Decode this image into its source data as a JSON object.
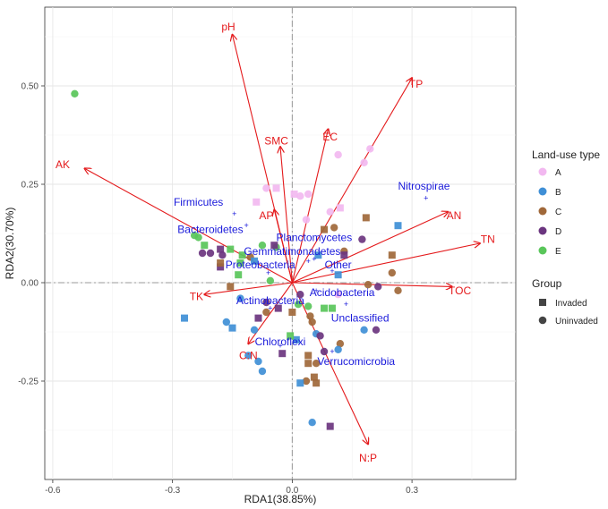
{
  "chart_data": {
    "type": "scatter",
    "xlabel": "RDA1(38.85%)",
    "ylabel": "RDA2(30.70%)",
    "xlim": [
      -0.62,
      0.56
    ],
    "ylim": [
      -0.5,
      0.7
    ],
    "xticks": [
      -0.6,
      -0.3,
      0.0,
      0.3
    ],
    "xtick_labels": [
      "-0.6",
      "-0.3",
      "0.0",
      "0.3"
    ],
    "yticks": [
      -0.25,
      0.0,
      0.25,
      0.5
    ],
    "ytick_labels": [
      "-0.25",
      "0.00",
      "0.25",
      "0.50"
    ],
    "legend_landuse": {
      "title": "Land-use type",
      "entries": [
        {
          "label": "A",
          "color": "#f2b8f0"
        },
        {
          "label": "B",
          "color": "#3f8fd6"
        },
        {
          "label": "C",
          "color": "#a0683a"
        },
        {
          "label": "D",
          "color": "#6b357f"
        },
        {
          "label": "E",
          "color": "#59c65a"
        }
      ]
    },
    "legend_group": {
      "title": "Group",
      "entries": [
        {
          "label": "Invaded",
          "shape": "square"
        },
        {
          "label": "Uninvaded",
          "shape": "circle"
        }
      ]
    },
    "vectors": [
      {
        "name": "pH",
        "x": -0.15,
        "y": 0.63,
        "lx": -0.16,
        "ly": 0.65
      },
      {
        "name": "TP",
        "x": 0.3,
        "y": 0.52,
        "lx": 0.31,
        "ly": 0.505
      },
      {
        "name": "EC",
        "x": 0.09,
        "y": 0.39,
        "lx": 0.095,
        "ly": 0.37
      },
      {
        "name": "SMC",
        "x": -0.03,
        "y": 0.345,
        "lx": -0.04,
        "ly": 0.36
      },
      {
        "name": "AK",
        "x": -0.52,
        "y": 0.29,
        "lx": -0.575,
        "ly": 0.3
      },
      {
        "name": "AN",
        "x": 0.39,
        "y": 0.18,
        "lx": 0.405,
        "ly": 0.17
      },
      {
        "name": "TN",
        "x": 0.47,
        "y": 0.1,
        "lx": 0.49,
        "ly": 0.11
      },
      {
        "name": "TOC",
        "x": 0.4,
        "y": -0.01,
        "lx": 0.42,
        "ly": -0.02
      },
      {
        "name": "AP",
        "x": -0.045,
        "y": 0.185,
        "lx": -0.065,
        "ly": 0.17
      },
      {
        "name": "TK",
        "x": -0.22,
        "y": -0.03,
        "lx": -0.24,
        "ly": -0.035
      },
      {
        "name": "C:N",
        "x": -0.11,
        "y": -0.155,
        "lx": -0.11,
        "ly": -0.185
      },
      {
        "name": "N:P",
        "x": 0.19,
        "y": -0.41,
        "lx": 0.19,
        "ly": -0.445
      }
    ],
    "species": [
      {
        "name": "Firmicutes",
        "x": -0.145,
        "y": 0.175,
        "lx": -0.235,
        "ly": 0.205
      },
      {
        "name": "Nitrospirae",
        "x": 0.335,
        "y": 0.215,
        "lx": 0.33,
        "ly": 0.245
      },
      {
        "name": "Bacteroidetes",
        "x": -0.115,
        "y": 0.145,
        "lx": -0.205,
        "ly": 0.135
      },
      {
        "name": "Planctomycetes",
        "x": 0.055,
        "y": 0.06,
        "lx": 0.055,
        "ly": 0.115
      },
      {
        "name": "Gemmatimonadetes",
        "x": 0.04,
        "y": 0.055,
        "lx": 0.0,
        "ly": 0.08
      },
      {
        "name": "Proteobacteria",
        "x": -0.06,
        "y": 0.025,
        "lx": -0.08,
        "ly": 0.045
      },
      {
        "name": "Other",
        "x": 0.1,
        "y": 0.03,
        "lx": 0.115,
        "ly": 0.045
      },
      {
        "name": "Acidobacteria",
        "x": 0.06,
        "y": -0.02,
        "lx": 0.125,
        "ly": -0.025
      },
      {
        "name": "Actinobacteria",
        "x": -0.055,
        "y": -0.065,
        "lx": -0.055,
        "ly": -0.045
      },
      {
        "name": "Unclassified",
        "x": 0.135,
        "y": -0.055,
        "lx": 0.17,
        "ly": -0.09
      },
      {
        "name": "Chloroflexi",
        "x": -0.03,
        "y": -0.16,
        "lx": -0.03,
        "ly": -0.15
      },
      {
        "name": "Verrucomicrobia",
        "x": 0.1,
        "y": -0.175,
        "lx": 0.16,
        "ly": -0.2
      }
    ],
    "points": [
      {
        "g": "E",
        "s": "circle",
        "x": -0.545,
        "y": 0.48
      },
      {
        "g": "A",
        "s": "circle",
        "x": 0.195,
        "y": 0.34
      },
      {
        "g": "A",
        "s": "circle",
        "x": 0.115,
        "y": 0.325
      },
      {
        "g": "A",
        "s": "circle",
        "x": 0.18,
        "y": 0.305
      },
      {
        "g": "A",
        "s": "circle",
        "x": -0.065,
        "y": 0.24
      },
      {
        "g": "A",
        "s": "square",
        "x": -0.04,
        "y": 0.24
      },
      {
        "g": "A",
        "s": "circle",
        "x": 0.04,
        "y": 0.225
      },
      {
        "g": "A",
        "s": "square",
        "x": 0.005,
        "y": 0.225
      },
      {
        "g": "A",
        "s": "circle",
        "x": 0.02,
        "y": 0.22
      },
      {
        "g": "A",
        "s": "square",
        "x": 0.12,
        "y": 0.19
      },
      {
        "g": "A",
        "s": "circle",
        "x": 0.095,
        "y": 0.18
      },
      {
        "g": "A",
        "s": "circle",
        "x": 0.035,
        "y": 0.16
      },
      {
        "g": "A",
        "s": "square",
        "x": -0.09,
        "y": 0.205
      },
      {
        "g": "C",
        "s": "square",
        "x": 0.185,
        "y": 0.165
      },
      {
        "g": "B",
        "s": "square",
        "x": 0.265,
        "y": 0.145
      },
      {
        "g": "C",
        "s": "square",
        "x": 0.08,
        "y": 0.135
      },
      {
        "g": "C",
        "s": "circle",
        "x": 0.105,
        "y": 0.14
      },
      {
        "g": "D",
        "s": "circle",
        "x": 0.175,
        "y": 0.11
      },
      {
        "g": "E",
        "s": "circle",
        "x": -0.075,
        "y": 0.095
      },
      {
        "g": "E",
        "s": "circle",
        "x": -0.04,
        "y": 0.09
      },
      {
        "g": "D",
        "s": "square",
        "x": -0.045,
        "y": 0.095
      },
      {
        "g": "E",
        "s": "square",
        "x": -0.22,
        "y": 0.095
      },
      {
        "g": "E",
        "s": "circle",
        "x": -0.245,
        "y": 0.12
      },
      {
        "g": "E",
        "s": "circle",
        "x": -0.235,
        "y": 0.115
      },
      {
        "g": "D",
        "s": "square",
        "x": -0.18,
        "y": 0.085
      },
      {
        "g": "E",
        "s": "square",
        "x": -0.155,
        "y": 0.085
      },
      {
        "g": "D",
        "s": "circle",
        "x": -0.225,
        "y": 0.075
      },
      {
        "g": "D",
        "s": "circle",
        "x": -0.205,
        "y": 0.075
      },
      {
        "g": "D",
        "s": "circle",
        "x": -0.175,
        "y": 0.07
      },
      {
        "g": "E",
        "s": "square",
        "x": -0.125,
        "y": 0.07
      },
      {
        "g": "C",
        "s": "circle",
        "x": -0.105,
        "y": 0.065
      },
      {
        "g": "C",
        "s": "square",
        "x": 0.25,
        "y": 0.07
      },
      {
        "g": "B",
        "s": "square",
        "x": 0.065,
        "y": 0.07
      },
      {
        "g": "C",
        "s": "circle",
        "x": 0.13,
        "y": 0.08
      },
      {
        "g": "D",
        "s": "square",
        "x": 0.13,
        "y": 0.07
      },
      {
        "g": "D",
        "s": "square",
        "x": -0.18,
        "y": 0.04
      },
      {
        "g": "C",
        "s": "square",
        "x": -0.18,
        "y": 0.05
      },
      {
        "g": "E",
        "s": "square",
        "x": -0.13,
        "y": 0.05
      },
      {
        "g": "B",
        "s": "square",
        "x": -0.095,
        "y": 0.055
      },
      {
        "g": "E",
        "s": "circle",
        "x": -0.055,
        "y": 0.005
      },
      {
        "g": "C",
        "s": "circle",
        "x": 0.25,
        "y": 0.025
      },
      {
        "g": "B",
        "s": "square",
        "x": 0.115,
        "y": 0.02
      },
      {
        "g": "E",
        "s": "square",
        "x": -0.135,
        "y": 0.02
      },
      {
        "g": "C",
        "s": "circle",
        "x": 0.19,
        "y": -0.005
      },
      {
        "g": "D",
        "s": "circle",
        "x": 0.215,
        "y": -0.01
      },
      {
        "g": "C",
        "s": "circle",
        "x": 0.265,
        "y": -0.02
      },
      {
        "g": "C",
        "s": "square",
        "x": -0.155,
        "y": -0.01
      },
      {
        "g": "A",
        "s": "circle",
        "x": 0.115,
        "y": -0.03
      },
      {
        "g": "D",
        "s": "circle",
        "x": 0.02,
        "y": -0.03
      },
      {
        "g": "B",
        "s": "circle",
        "x": -0.13,
        "y": -0.04
      },
      {
        "g": "D",
        "s": "circle",
        "x": -0.065,
        "y": -0.05
      },
      {
        "g": "C",
        "s": "circle",
        "x": -0.065,
        "y": -0.075
      },
      {
        "g": "E",
        "s": "square",
        "x": 0.08,
        "y": -0.065
      },
      {
        "g": "E",
        "s": "circle",
        "x": 0.015,
        "y": -0.055
      },
      {
        "g": "E",
        "s": "circle",
        "x": 0.04,
        "y": -0.06
      },
      {
        "g": "E",
        "s": "square",
        "x": 0.1,
        "y": -0.065
      },
      {
        "g": "D",
        "s": "square",
        "x": -0.035,
        "y": -0.065
      },
      {
        "g": "C",
        "s": "square",
        "x": 0.0,
        "y": -0.075
      },
      {
        "g": "D",
        "s": "square",
        "x": -0.085,
        "y": -0.09
      },
      {
        "g": "B",
        "s": "square",
        "x": -0.27,
        "y": -0.09
      },
      {
        "g": "B",
        "s": "circle",
        "x": -0.165,
        "y": -0.1
      },
      {
        "g": "B",
        "s": "square",
        "x": -0.15,
        "y": -0.115
      },
      {
        "g": "C",
        "s": "circle",
        "x": 0.045,
        "y": -0.085
      },
      {
        "g": "C",
        "s": "circle",
        "x": 0.05,
        "y": -0.1
      },
      {
        "g": "B",
        "s": "circle",
        "x": -0.095,
        "y": -0.12
      },
      {
        "g": "B",
        "s": "circle",
        "x": 0.18,
        "y": -0.12
      },
      {
        "g": "D",
        "s": "circle",
        "x": 0.21,
        "y": -0.12
      },
      {
        "g": "B",
        "s": "circle",
        "x": 0.06,
        "y": -0.13
      },
      {
        "g": "D",
        "s": "circle",
        "x": 0.07,
        "y": -0.135
      },
      {
        "g": "B",
        "s": "square",
        "x": 0.01,
        "y": -0.145
      },
      {
        "g": "E",
        "s": "square",
        "x": -0.005,
        "y": -0.135
      },
      {
        "g": "C",
        "s": "circle",
        "x": 0.12,
        "y": -0.155
      },
      {
        "g": "D",
        "s": "circle",
        "x": 0.08,
        "y": -0.175
      },
      {
        "g": "B",
        "s": "circle",
        "x": 0.115,
        "y": -0.17
      },
      {
        "g": "C",
        "s": "square",
        "x": 0.04,
        "y": -0.185
      },
      {
        "g": "B",
        "s": "circle",
        "x": -0.11,
        "y": -0.185
      },
      {
        "g": "B",
        "s": "circle",
        "x": -0.085,
        "y": -0.2
      },
      {
        "g": "D",
        "s": "square",
        "x": -0.025,
        "y": -0.18
      },
      {
        "g": "C",
        "s": "square",
        "x": 0.04,
        "y": -0.205
      },
      {
        "g": "C",
        "s": "circle",
        "x": 0.06,
        "y": -0.205
      },
      {
        "g": "B",
        "s": "circle",
        "x": -0.075,
        "y": -0.225
      },
      {
        "g": "C",
        "s": "square",
        "x": 0.055,
        "y": -0.24
      },
      {
        "g": "C",
        "s": "circle",
        "x": 0.035,
        "y": -0.25
      },
      {
        "g": "C",
        "s": "square",
        "x": 0.06,
        "y": -0.255
      },
      {
        "g": "B",
        "s": "square",
        "x": 0.02,
        "y": -0.255
      },
      {
        "g": "B",
        "s": "circle",
        "x": 0.05,
        "y": -0.355
      },
      {
        "g": "D",
        "s": "square",
        "x": 0.095,
        "y": -0.365
      }
    ]
  }
}
